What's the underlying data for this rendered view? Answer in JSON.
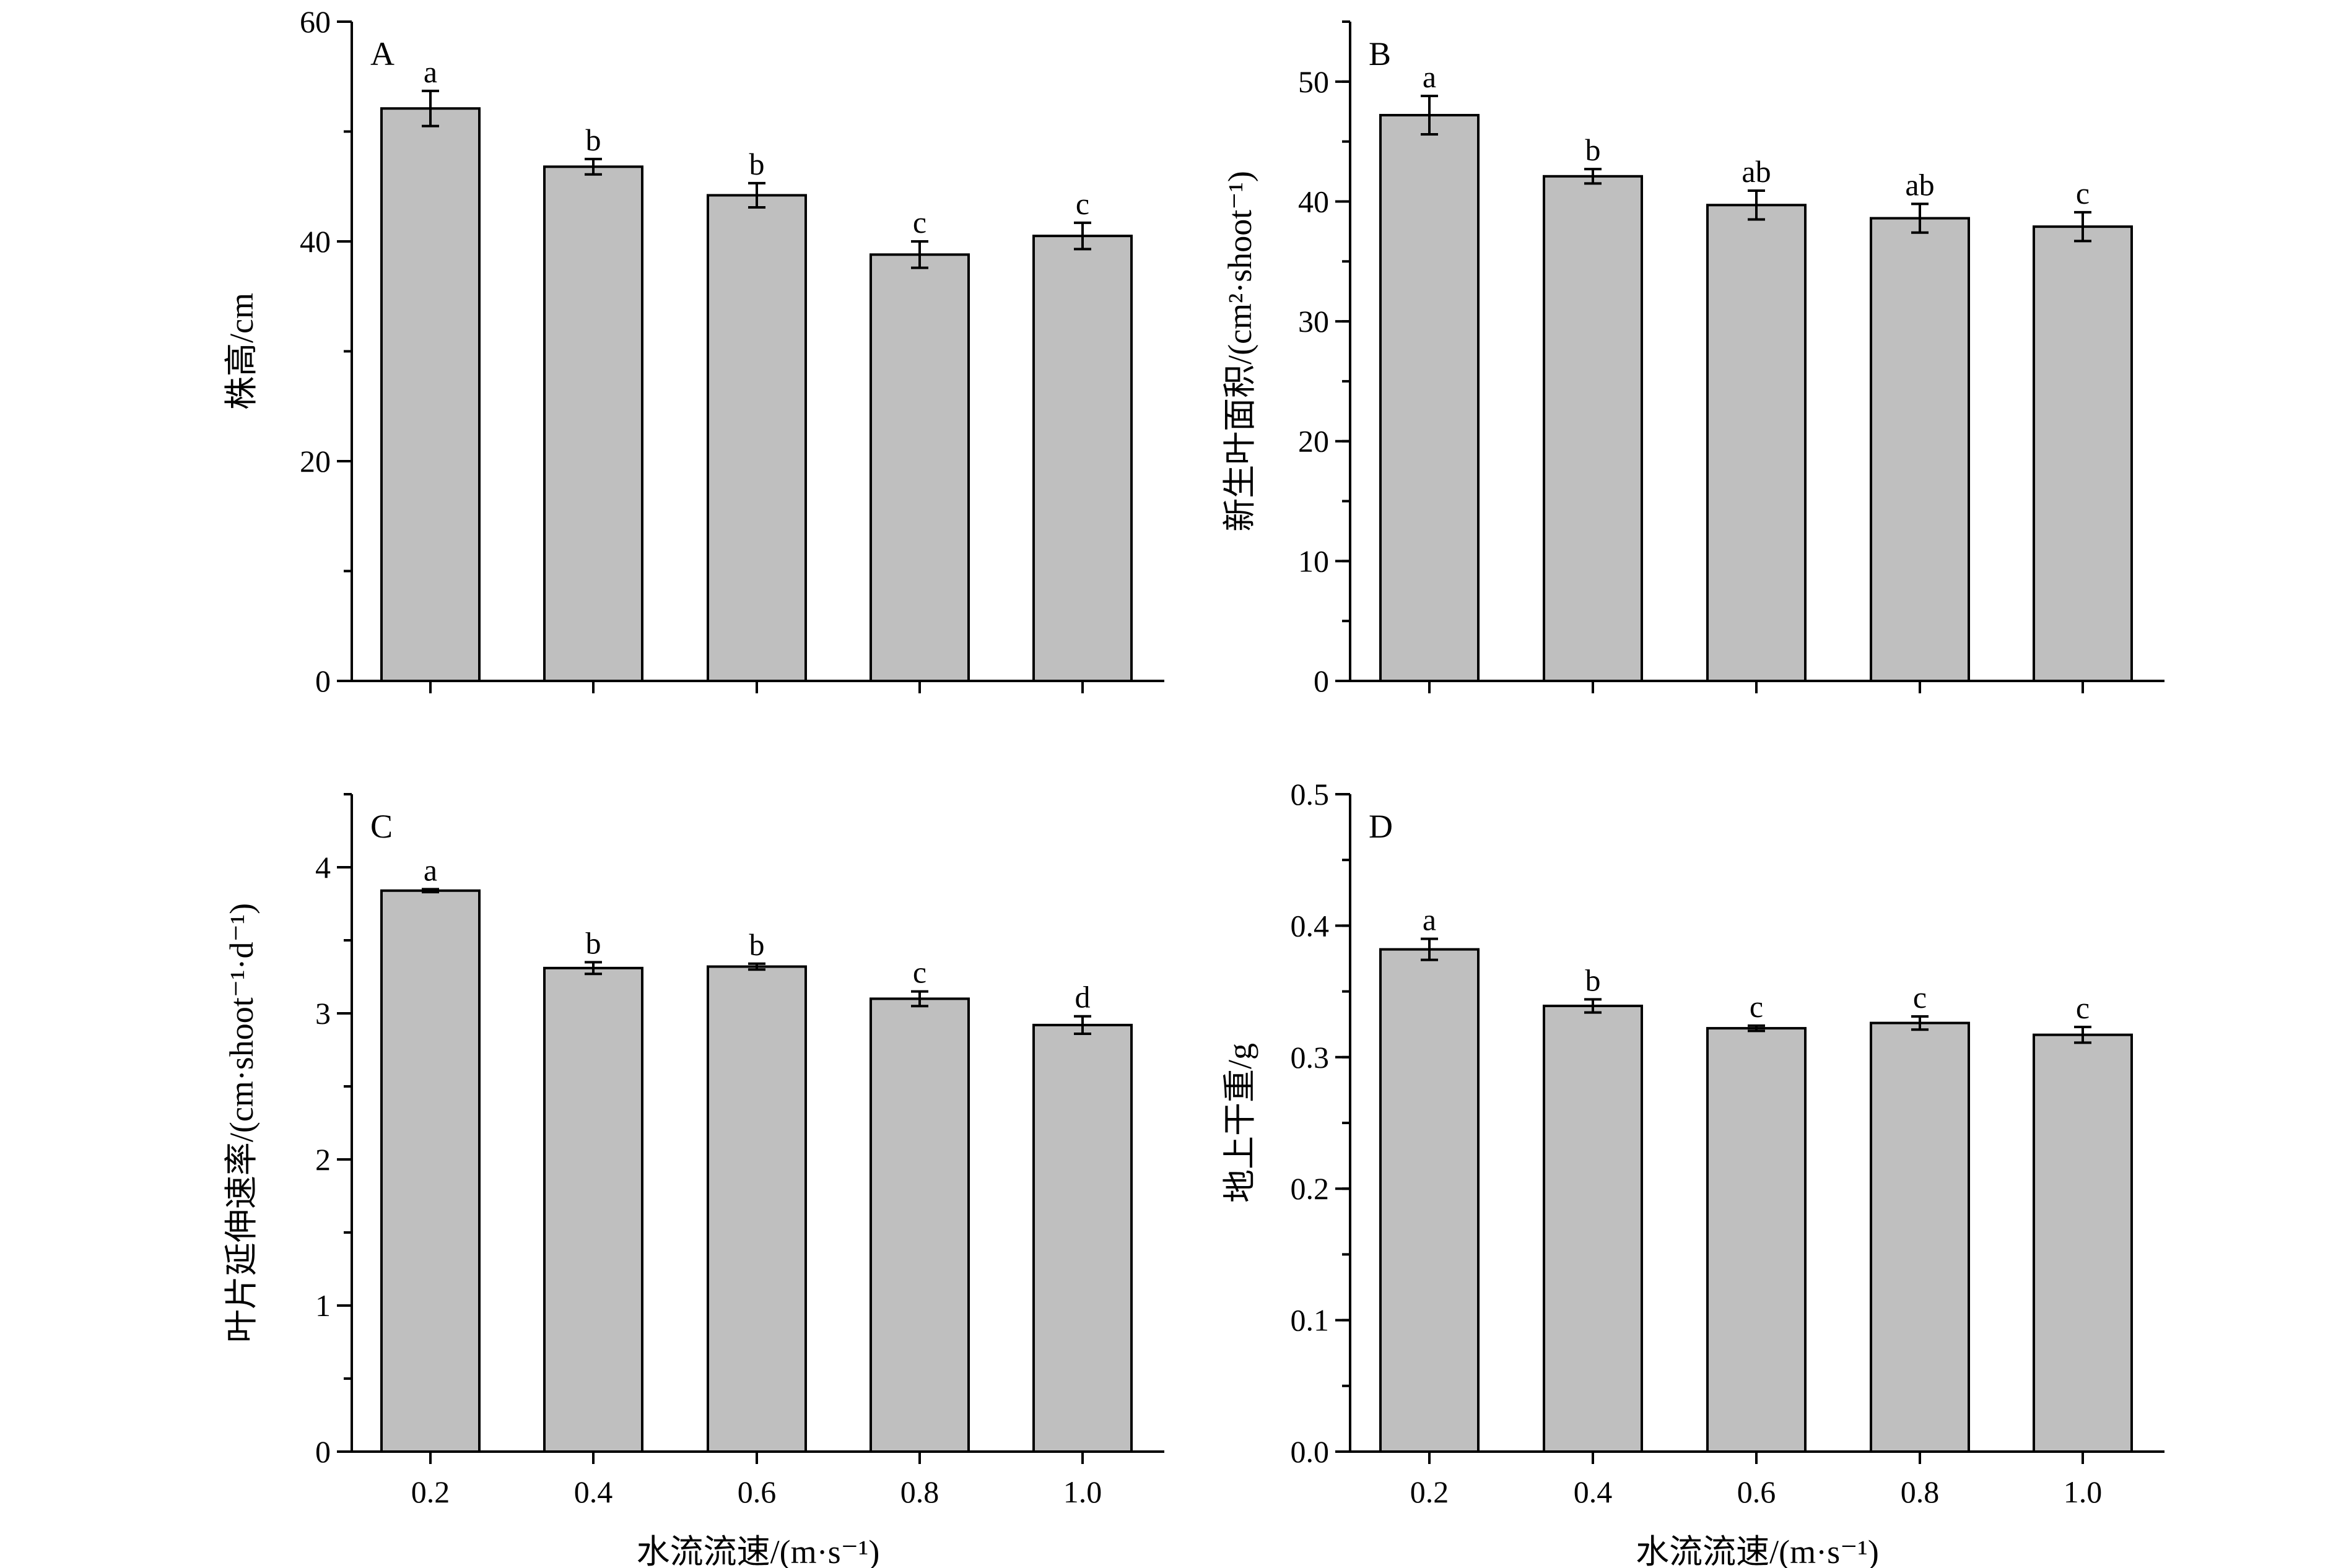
{
  "chart_data": [
    {
      "panel": "A",
      "type": "bar",
      "categories": [
        "0.2",
        "0.4",
        "0.6",
        "0.8",
        "1.0"
      ],
      "values": [
        52.1,
        46.8,
        44.2,
        38.8,
        40.5
      ],
      "errors": [
        1.6,
        0.7,
        1.1,
        1.2,
        1.2
      ],
      "letters": [
        "a",
        "b",
        "b",
        "c",
        "c"
      ],
      "ylabel": "株高/cm",
      "xlabel": "",
      "ylim": [
        0,
        60
      ],
      "yticks": [
        "0",
        "20",
        "40",
        "60"
      ]
    },
    {
      "panel": "B",
      "type": "bar",
      "categories": [
        "0.2",
        "0.4",
        "0.6",
        "0.8",
        "1.0"
      ],
      "values": [
        47.2,
        42.1,
        39.7,
        38.6,
        37.9
      ],
      "errors": [
        1.6,
        0.6,
        1.2,
        1.2,
        1.2
      ],
      "letters": [
        "a",
        "b",
        "ab",
        "ab",
        "c"
      ],
      "ylabel": "新生叶面积/(cm²·shoot⁻¹)",
      "xlabel": "",
      "ylim": [
        0,
        55
      ],
      "yticks": [
        "0",
        "10",
        "20",
        "30",
        "40",
        "50"
      ]
    },
    {
      "panel": "C",
      "type": "bar",
      "categories": [
        "0.2",
        "0.4",
        "0.6",
        "0.8",
        "1.0"
      ],
      "values": [
        3.84,
        3.31,
        3.32,
        3.1,
        2.92
      ],
      "errors": [
        0.01,
        0.04,
        0.02,
        0.05,
        0.06
      ],
      "letters": [
        "a",
        "b",
        "b",
        "c",
        "d"
      ],
      "ylabel": "叶片延伸速率/(cm·shoot⁻¹·d⁻¹)",
      "xlabel": "水流流速/(m·s⁻¹)",
      "ylim": [
        0,
        4.5
      ],
      "yticks": [
        "0",
        "1",
        "2",
        "3",
        "4"
      ]
    },
    {
      "panel": "D",
      "type": "bar",
      "categories": [
        "0.2",
        "0.4",
        "0.6",
        "0.8",
        "1.0"
      ],
      "values": [
        0.382,
        0.339,
        0.322,
        0.326,
        0.317
      ],
      "errors": [
        0.008,
        0.005,
        0.002,
        0.005,
        0.006
      ],
      "letters": [
        "a",
        "b",
        "c",
        "c",
        "c"
      ],
      "ylabel": "地上干重/g",
      "xlabel": "水流流速/(m·s⁻¹)",
      "ylim": [
        0,
        0.5
      ],
      "yticks": [
        "0.0",
        "0.1",
        "0.2",
        "0.3",
        "0.4",
        "0.5"
      ]
    }
  ]
}
